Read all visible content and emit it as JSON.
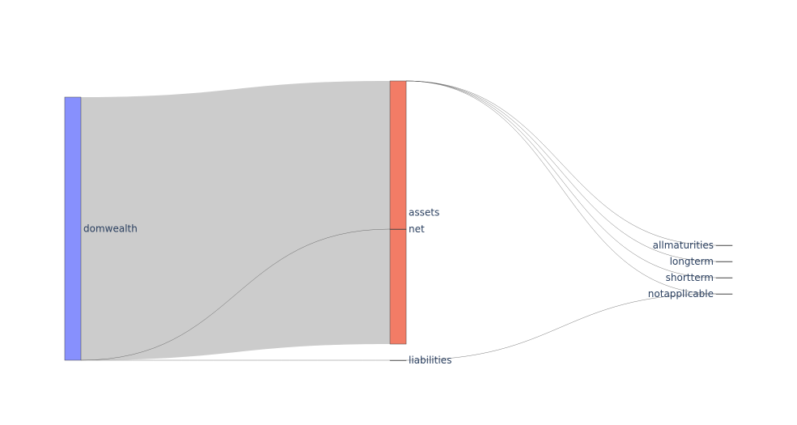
{
  "chart_data": {
    "type": "sankey",
    "title": "",
    "nodes": [
      {
        "id": "domwealth",
        "label": "domwealth",
        "color": "#8790fd"
      },
      {
        "id": "assets",
        "label": "assets",
        "color": "#f27c66"
      },
      {
        "id": "liabilities",
        "label": "liabilities",
        "color": "#6ad6c0"
      },
      {
        "id": "net",
        "label": "net",
        "color": "#c99bf8"
      },
      {
        "id": "allmaturities",
        "label": "allmaturities",
        "color": "#ffbb88"
      },
      {
        "id": "longterm",
        "label": "longterm",
        "color": "#66d6f5"
      },
      {
        "id": "shortterm",
        "label": "shortterm",
        "color": "#ff8fa8"
      },
      {
        "id": "notapplicable",
        "label": "notapplicable",
        "color": "#c4ee9c"
      }
    ],
    "links": [
      {
        "source": "domwealth",
        "target": "assets",
        "value": 100
      },
      {
        "source": "domwealth",
        "target": "liabilities",
        "value": 0
      },
      {
        "source": "domwealth",
        "target": "net",
        "value": 0
      },
      {
        "source": "assets",
        "target": "allmaturities",
        "value": 0
      },
      {
        "source": "assets",
        "target": "longterm",
        "value": 0
      },
      {
        "source": "assets",
        "target": "shortterm",
        "value": 0
      },
      {
        "source": "assets",
        "target": "notapplicable",
        "value": 0
      },
      {
        "source": "liabilities",
        "target": "notapplicable",
        "value": 0
      }
    ],
    "link_color": "#cccccc"
  }
}
